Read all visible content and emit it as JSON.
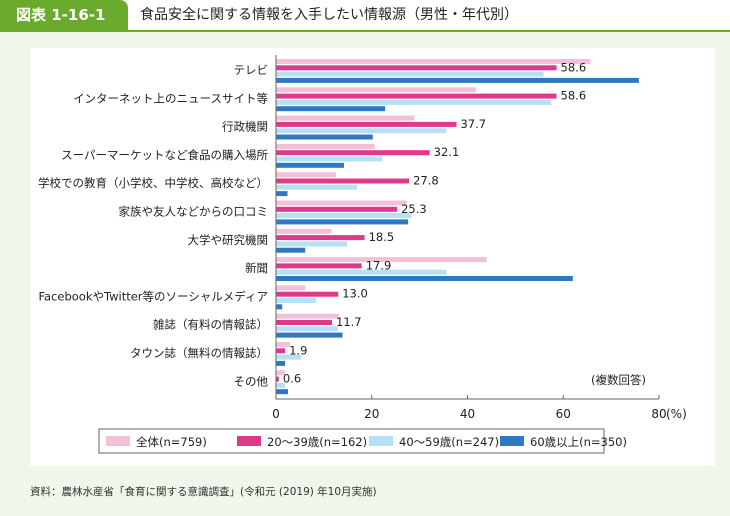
{
  "header": {
    "figure_no": "図表 1-16-1",
    "title": "食品安全に関する情報を入手したい情報源（男性・年代別）"
  },
  "source": "資料：農林水産省「食育に関する意識調査」(令和元 (2019) 年10月実施)",
  "chart_data": {
    "type": "bar",
    "orientation": "horizontal",
    "title": "食品安全に関する情報を入手したい情報源（男性・年代別）",
    "categories": [
      "テレビ",
      "インターネット上のニュースサイト等",
      "行政機関",
      "スーパーマーケットなど食品の購入場所",
      "学校での教育（小学校、中学校、高校など）",
      "家族や友人などからの口コミ",
      "大学や研究機関",
      "新聞",
      "FacebookやTwitter等のソーシャルメディア",
      "雑誌（有料の情報誌）",
      "タウン誌（無料の情報誌）",
      "その他"
    ],
    "series": [
      {
        "name": "全体(n=759)",
        "color": "#f4bfd8",
        "values": [
          65.7,
          41.8,
          28.9,
          20.6,
          12.5,
          27.3,
          11.6,
          44.0,
          6.1,
          13.1,
          2.9,
          1.9
        ]
      },
      {
        "name": "20～39歳(n=162)",
        "color": "#df3a8a",
        "values": [
          58.6,
          58.6,
          37.7,
          32.1,
          27.8,
          25.3,
          18.5,
          17.9,
          13.0,
          11.7,
          1.9,
          0.6
        ],
        "data_labels": [
          "58.6",
          "58.6",
          "37.7",
          "32.1",
          "27.8",
          "25.3",
          "18.5",
          "17.9",
          "13.0",
          "11.7",
          "1.9",
          "0.6"
        ]
      },
      {
        "name": "40～59歳(n=247)",
        "color": "#b5e0f6",
        "values": [
          55.9,
          57.5,
          35.6,
          22.2,
          16.9,
          28.3,
          14.9,
          35.6,
          8.4,
          12.9,
          5.2,
          1.9
        ]
      },
      {
        "name": "60歳以上(n=350)",
        "color": "#3278c0",
        "values": [
          75.8,
          22.8,
          20.2,
          14.2,
          2.4,
          27.6,
          6.1,
          62.0,
          1.3,
          13.9,
          1.9,
          2.5
        ]
      }
    ],
    "xlim": [
      0,
      80
    ],
    "xticks": [
      "0",
      "20",
      "40",
      "60",
      "80"
    ],
    "xunit": "(%)",
    "annotation": "(複数回答)",
    "legend": "bottom",
    "grid": false
  }
}
